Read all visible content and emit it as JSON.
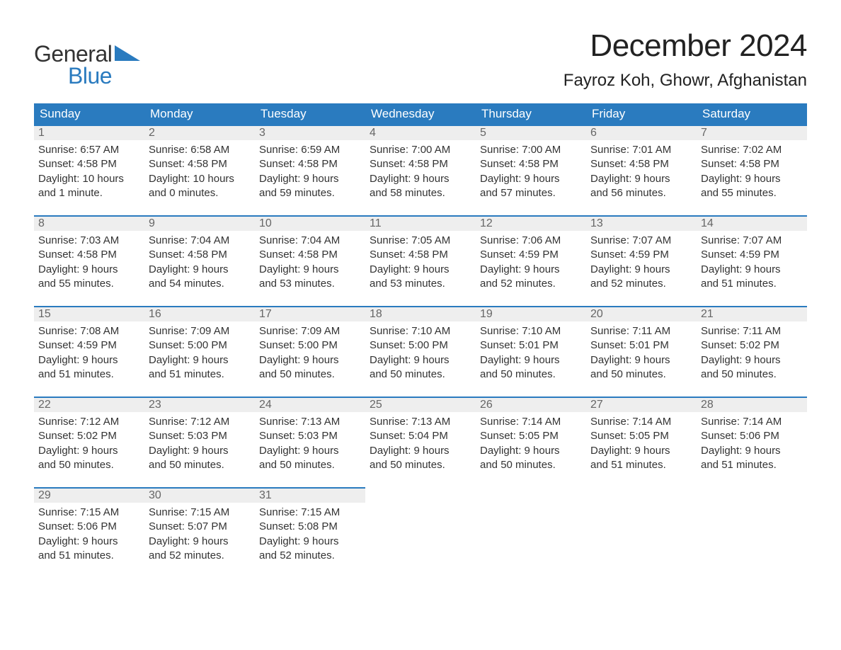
{
  "brand": {
    "top": "General",
    "bottom": "Blue",
    "accent_color": "#2a7bbf",
    "text_color": "#333333"
  },
  "header": {
    "month_title": "December 2024",
    "location": "Fayroz Koh, Ghowr, Afghanistan"
  },
  "styling": {
    "header_bg": "#2a7bbf",
    "header_fg": "#ffffff",
    "daynum_bg": "#eeeeee",
    "daynum_fg": "#666666",
    "row_border": "#2a7bbf",
    "body_text": "#333333",
    "page_bg": "#ffffff",
    "title_fontsize": 44,
    "location_fontsize": 24,
    "cell_fontsize": 15
  },
  "weekdays": [
    "Sunday",
    "Monday",
    "Tuesday",
    "Wednesday",
    "Thursday",
    "Friday",
    "Saturday"
  ],
  "weeks": [
    [
      {
        "n": "1",
        "sr": "Sunrise: 6:57 AM",
        "ss": "Sunset: 4:58 PM",
        "d1": "Daylight: 10 hours",
        "d2": "and 1 minute."
      },
      {
        "n": "2",
        "sr": "Sunrise: 6:58 AM",
        "ss": "Sunset: 4:58 PM",
        "d1": "Daylight: 10 hours",
        "d2": "and 0 minutes."
      },
      {
        "n": "3",
        "sr": "Sunrise: 6:59 AM",
        "ss": "Sunset: 4:58 PM",
        "d1": "Daylight: 9 hours",
        "d2": "and 59 minutes."
      },
      {
        "n": "4",
        "sr": "Sunrise: 7:00 AM",
        "ss": "Sunset: 4:58 PM",
        "d1": "Daylight: 9 hours",
        "d2": "and 58 minutes."
      },
      {
        "n": "5",
        "sr": "Sunrise: 7:00 AM",
        "ss": "Sunset: 4:58 PM",
        "d1": "Daylight: 9 hours",
        "d2": "and 57 minutes."
      },
      {
        "n": "6",
        "sr": "Sunrise: 7:01 AM",
        "ss": "Sunset: 4:58 PM",
        "d1": "Daylight: 9 hours",
        "d2": "and 56 minutes."
      },
      {
        "n": "7",
        "sr": "Sunrise: 7:02 AM",
        "ss": "Sunset: 4:58 PM",
        "d1": "Daylight: 9 hours",
        "d2": "and 55 minutes."
      }
    ],
    [
      {
        "n": "8",
        "sr": "Sunrise: 7:03 AM",
        "ss": "Sunset: 4:58 PM",
        "d1": "Daylight: 9 hours",
        "d2": "and 55 minutes."
      },
      {
        "n": "9",
        "sr": "Sunrise: 7:04 AM",
        "ss": "Sunset: 4:58 PM",
        "d1": "Daylight: 9 hours",
        "d2": "and 54 minutes."
      },
      {
        "n": "10",
        "sr": "Sunrise: 7:04 AM",
        "ss": "Sunset: 4:58 PM",
        "d1": "Daylight: 9 hours",
        "d2": "and 53 minutes."
      },
      {
        "n": "11",
        "sr": "Sunrise: 7:05 AM",
        "ss": "Sunset: 4:58 PM",
        "d1": "Daylight: 9 hours",
        "d2": "and 53 minutes."
      },
      {
        "n": "12",
        "sr": "Sunrise: 7:06 AM",
        "ss": "Sunset: 4:59 PM",
        "d1": "Daylight: 9 hours",
        "d2": "and 52 minutes."
      },
      {
        "n": "13",
        "sr": "Sunrise: 7:07 AM",
        "ss": "Sunset: 4:59 PM",
        "d1": "Daylight: 9 hours",
        "d2": "and 52 minutes."
      },
      {
        "n": "14",
        "sr": "Sunrise: 7:07 AM",
        "ss": "Sunset: 4:59 PM",
        "d1": "Daylight: 9 hours",
        "d2": "and 51 minutes."
      }
    ],
    [
      {
        "n": "15",
        "sr": "Sunrise: 7:08 AM",
        "ss": "Sunset: 4:59 PM",
        "d1": "Daylight: 9 hours",
        "d2": "and 51 minutes."
      },
      {
        "n": "16",
        "sr": "Sunrise: 7:09 AM",
        "ss": "Sunset: 5:00 PM",
        "d1": "Daylight: 9 hours",
        "d2": "and 51 minutes."
      },
      {
        "n": "17",
        "sr": "Sunrise: 7:09 AM",
        "ss": "Sunset: 5:00 PM",
        "d1": "Daylight: 9 hours",
        "d2": "and 50 minutes."
      },
      {
        "n": "18",
        "sr": "Sunrise: 7:10 AM",
        "ss": "Sunset: 5:00 PM",
        "d1": "Daylight: 9 hours",
        "d2": "and 50 minutes."
      },
      {
        "n": "19",
        "sr": "Sunrise: 7:10 AM",
        "ss": "Sunset: 5:01 PM",
        "d1": "Daylight: 9 hours",
        "d2": "and 50 minutes."
      },
      {
        "n": "20",
        "sr": "Sunrise: 7:11 AM",
        "ss": "Sunset: 5:01 PM",
        "d1": "Daylight: 9 hours",
        "d2": "and 50 minutes."
      },
      {
        "n": "21",
        "sr": "Sunrise: 7:11 AM",
        "ss": "Sunset: 5:02 PM",
        "d1": "Daylight: 9 hours",
        "d2": "and 50 minutes."
      }
    ],
    [
      {
        "n": "22",
        "sr": "Sunrise: 7:12 AM",
        "ss": "Sunset: 5:02 PM",
        "d1": "Daylight: 9 hours",
        "d2": "and 50 minutes."
      },
      {
        "n": "23",
        "sr": "Sunrise: 7:12 AM",
        "ss": "Sunset: 5:03 PM",
        "d1": "Daylight: 9 hours",
        "d2": "and 50 minutes."
      },
      {
        "n": "24",
        "sr": "Sunrise: 7:13 AM",
        "ss": "Sunset: 5:03 PM",
        "d1": "Daylight: 9 hours",
        "d2": "and 50 minutes."
      },
      {
        "n": "25",
        "sr": "Sunrise: 7:13 AM",
        "ss": "Sunset: 5:04 PM",
        "d1": "Daylight: 9 hours",
        "d2": "and 50 minutes."
      },
      {
        "n": "26",
        "sr": "Sunrise: 7:14 AM",
        "ss": "Sunset: 5:05 PM",
        "d1": "Daylight: 9 hours",
        "d2": "and 50 minutes."
      },
      {
        "n": "27",
        "sr": "Sunrise: 7:14 AM",
        "ss": "Sunset: 5:05 PM",
        "d1": "Daylight: 9 hours",
        "d2": "and 51 minutes."
      },
      {
        "n": "28",
        "sr": "Sunrise: 7:14 AM",
        "ss": "Sunset: 5:06 PM",
        "d1": "Daylight: 9 hours",
        "d2": "and 51 minutes."
      }
    ],
    [
      {
        "n": "29",
        "sr": "Sunrise: 7:15 AM",
        "ss": "Sunset: 5:06 PM",
        "d1": "Daylight: 9 hours",
        "d2": "and 51 minutes."
      },
      {
        "n": "30",
        "sr": "Sunrise: 7:15 AM",
        "ss": "Sunset: 5:07 PM",
        "d1": "Daylight: 9 hours",
        "d2": "and 52 minutes."
      },
      {
        "n": "31",
        "sr": "Sunrise: 7:15 AM",
        "ss": "Sunset: 5:08 PM",
        "d1": "Daylight: 9 hours",
        "d2": "and 52 minutes."
      },
      null,
      null,
      null,
      null
    ]
  ]
}
